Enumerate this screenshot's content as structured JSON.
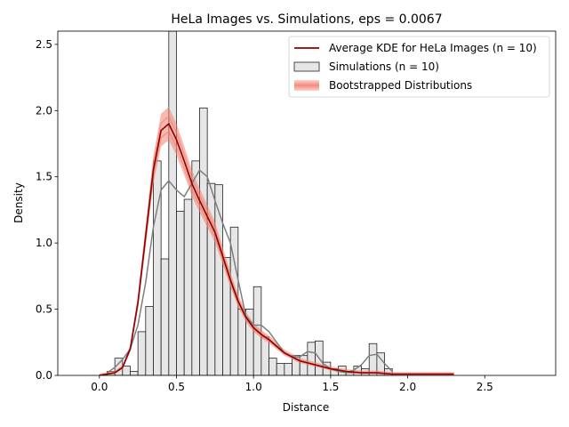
{
  "chart_data": {
    "type": "bar",
    "title": "HeLa Images vs. Simulations, eps = 0.0067",
    "xlabel": "Distance",
    "ylabel": "Density",
    "xlim": [
      -0.27,
      2.96
    ],
    "ylim": [
      0,
      2.6
    ],
    "xticks": [
      "0.0",
      "0.5",
      "1.0",
      "1.5",
      "2.0",
      "2.5"
    ],
    "yticks": [
      "0.0",
      "0.5",
      "1.0",
      "1.5",
      "2.0",
      "2.5"
    ],
    "grid": false,
    "legend_position": "top-right",
    "colors": {
      "hist_fill": "#e6e6e6",
      "hist_edge": "#222222",
      "sim_kde": "#7f7f7f",
      "avg_kde": "#8b0000",
      "bootstrap": "#f08070"
    },
    "legend": [
      {
        "label": "Average KDE for HeLa Images (n = 10)",
        "kind": "line"
      },
      {
        "label": "Simulations (n = 10)",
        "kind": "patch"
      },
      {
        "label": "Bootstrapped Distributions",
        "kind": "band"
      }
    ],
    "histogram": {
      "name": "Simulations (n = 10)",
      "bin_edges": [
        0.05,
        0.1,
        0.15,
        0.2,
        0.25,
        0.3,
        0.35,
        0.4,
        0.45,
        0.5,
        0.55,
        0.6,
        0.65,
        0.7,
        0.75,
        0.8,
        0.85,
        0.9,
        0.95,
        1.0,
        1.05,
        1.1,
        1.15,
        1.2,
        1.25,
        1.3,
        1.35,
        1.4,
        1.45,
        1.5,
        1.55,
        1.6,
        1.65,
        1.7,
        1.75,
        1.8,
        1.85,
        1.9
      ],
      "values": [
        0.03,
        0.13,
        0.07,
        0.03,
        0.33,
        0.52,
        1.62,
        0.88,
        2.6,
        1.24,
        1.33,
        1.62,
        2.02,
        1.45,
        1.44,
        0.89,
        1.12,
        0.5,
        0.5,
        0.67,
        0.29,
        0.13,
        0.09,
        0.09,
        0.15,
        0.15,
        0.25,
        0.26,
        0.1,
        0.05,
        0.07,
        0.02,
        0.07,
        0.05,
        0.24,
        0.17,
        0.05
      ]
    },
    "series": [
      {
        "name": "Average KDE for HeLa Images (n = 10)",
        "x": [
          0.0,
          0.1,
          0.15,
          0.2,
          0.25,
          0.3,
          0.35,
          0.4,
          0.45,
          0.5,
          0.55,
          0.6,
          0.65,
          0.7,
          0.75,
          0.8,
          0.85,
          0.9,
          0.95,
          1.0,
          1.05,
          1.1,
          1.15,
          1.2,
          1.3,
          1.4,
          1.5,
          1.6,
          1.7,
          1.8,
          1.9,
          2.0,
          2.1,
          2.2,
          2.3
        ],
        "values": [
          0.0,
          0.02,
          0.06,
          0.2,
          0.55,
          1.05,
          1.55,
          1.85,
          1.9,
          1.78,
          1.62,
          1.45,
          1.32,
          1.2,
          1.08,
          0.9,
          0.72,
          0.56,
          0.44,
          0.36,
          0.31,
          0.27,
          0.22,
          0.17,
          0.11,
          0.08,
          0.05,
          0.03,
          0.02,
          0.02,
          0.01,
          0.01,
          0.01,
          0.01,
          0.01
        ]
      },
      {
        "name": "Simulations KDE",
        "x": [
          0.05,
          0.1,
          0.15,
          0.2,
          0.25,
          0.3,
          0.35,
          0.4,
          0.45,
          0.5,
          0.55,
          0.6,
          0.65,
          0.7,
          0.75,
          0.8,
          0.85,
          0.9,
          0.95,
          1.0,
          1.05,
          1.1,
          1.15,
          1.2,
          1.25,
          1.3,
          1.35,
          1.4,
          1.45,
          1.5,
          1.55,
          1.6,
          1.65,
          1.7,
          1.75,
          1.8,
          1.85,
          1.9
        ],
        "values": [
          0.02,
          0.06,
          0.12,
          0.2,
          0.38,
          0.7,
          1.12,
          1.4,
          1.47,
          1.4,
          1.35,
          1.45,
          1.55,
          1.5,
          1.32,
          1.15,
          1.0,
          0.72,
          0.45,
          0.38,
          0.38,
          0.33,
          0.25,
          0.17,
          0.14,
          0.14,
          0.18,
          0.17,
          0.09,
          0.05,
          0.03,
          0.02,
          0.04,
          0.08,
          0.15,
          0.16,
          0.09,
          0.03
        ]
      }
    ]
  }
}
